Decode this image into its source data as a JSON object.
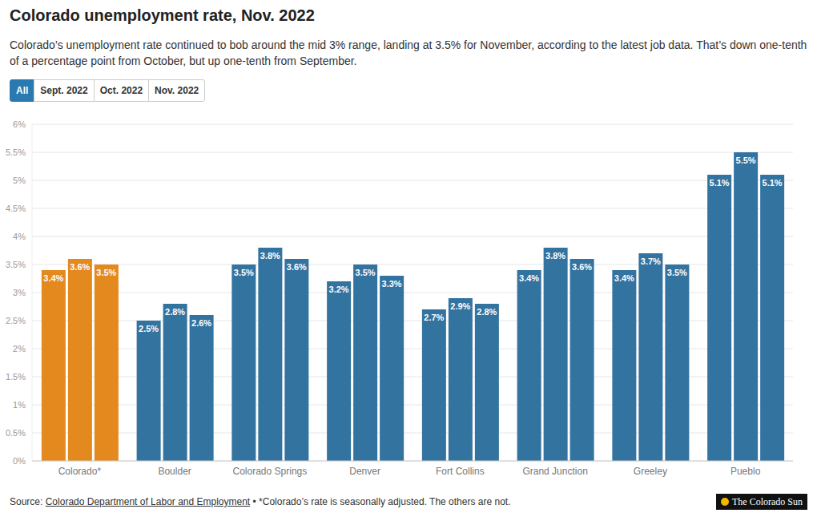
{
  "chart_data": {
    "type": "bar",
    "title": "Colorado unemployment rate, Nov. 2022",
    "subtitle": "Colorado’s unemployment rate continued to bob around the mid 3% range, landing at 3.5% for November, according to the latest job data. That’s down one-tenth of a percentage point from October, but up one-tenth from September.",
    "all_button": "All",
    "categories": [
      "Colorado*",
      "Boulder",
      "Colorado Springs",
      "Denver",
      "Fort Collins",
      "Grand Junction",
      "Greeley",
      "Pueblo"
    ],
    "series": [
      {
        "name": "Sept. 2022",
        "values": [
          3.4,
          2.5,
          3.5,
          3.2,
          2.7,
          3.4,
          3.4,
          5.1
        ],
        "value_labels": [
          "3.4%",
          "2.5%",
          "3.5%",
          "3.2%",
          "2.7%",
          "3.4%",
          "3.4%",
          "5.1%"
        ],
        "colors": [
          "#e3891e",
          "#33739f",
          "#33739f",
          "#33739f",
          "#33739f",
          "#33739f",
          "#33739f",
          "#33739f"
        ]
      },
      {
        "name": "Oct. 2022",
        "values": [
          3.6,
          2.8,
          3.8,
          3.5,
          2.9,
          3.8,
          3.7,
          5.5
        ],
        "value_labels": [
          "3.6%",
          "2.8%",
          "3.8%",
          "3.5%",
          "2.9%",
          "3.8%",
          "3.7%",
          "5.5%"
        ],
        "colors": [
          "#e3891e",
          "#33739f",
          "#33739f",
          "#33739f",
          "#33739f",
          "#33739f",
          "#33739f",
          "#33739f"
        ]
      },
      {
        "name": "Nov. 2022",
        "values": [
          3.5,
          2.6,
          3.6,
          3.3,
          2.8,
          3.6,
          3.5,
          5.1
        ],
        "value_labels": [
          "3.5%",
          "2.6%",
          "3.6%",
          "3.3%",
          "2.8%",
          "3.6%",
          "3.5%",
          "5.1%"
        ],
        "colors": [
          "#e3891e",
          "#33739f",
          "#33739f",
          "#33739f",
          "#33739f",
          "#33739f",
          "#33739f",
          "#33739f"
        ]
      }
    ],
    "ylim": [
      0,
      6
    ],
    "yticks": [
      {
        "value": 0,
        "label": "0%"
      },
      {
        "value": 0.5,
        "label": "0.5%"
      },
      {
        "value": 1,
        "label": "1%"
      },
      {
        "value": 1.5,
        "label": "1.5%"
      },
      {
        "value": 2,
        "label": "2%"
      },
      {
        "value": 2.5,
        "label": "2.5%"
      },
      {
        "value": 3,
        "label": "3%"
      },
      {
        "value": 3.5,
        "label": "3.5%"
      },
      {
        "value": 4,
        "label": "4%"
      },
      {
        "value": 4.5,
        "label": "4.5%"
      },
      {
        "value": 5,
        "label": "5%"
      },
      {
        "value": 5.5,
        "label": "5.5%"
      },
      {
        "value": 6,
        "label": "6%"
      }
    ],
    "grid": true,
    "data_labels": true,
    "source_prefix": "Source:",
    "source_link": "Colorado Department of Labor and Employment",
    "note": "• *Colorado’s rate is seasonally adjusted. The others are not.",
    "logo": "The Colorado Sun"
  }
}
